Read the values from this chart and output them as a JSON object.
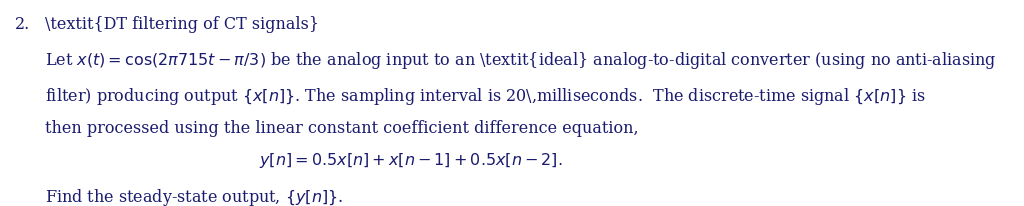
{
  "background_color": "#ffffff",
  "text_color": "#1a1a6e",
  "figsize": [
    10.24,
    2.07
  ],
  "dpi": 100,
  "number": "2.",
  "title": "DT filtering of CT signals",
  "line1": "Let $x(t) = \\cos(2\\pi 715t - \\pi/3)$ be the analog input to an \\textit{ideal} analog-to-digital converter (using no anti-aliasing",
  "line2": "filter) producing output $\\{x[n]\\}$. The sampling interval is 20\\,milliseconds.  The discrete-time signal $\\{x[n]\\}$ is",
  "line3": "then processed using the linear constant coefficient difference equation,",
  "equation": "$y[n] = 0.5x[n] + x[n-1] + 0.5x[n-2].$",
  "line4": "Find the steady-state output, $\\{y[n]\\}$."
}
